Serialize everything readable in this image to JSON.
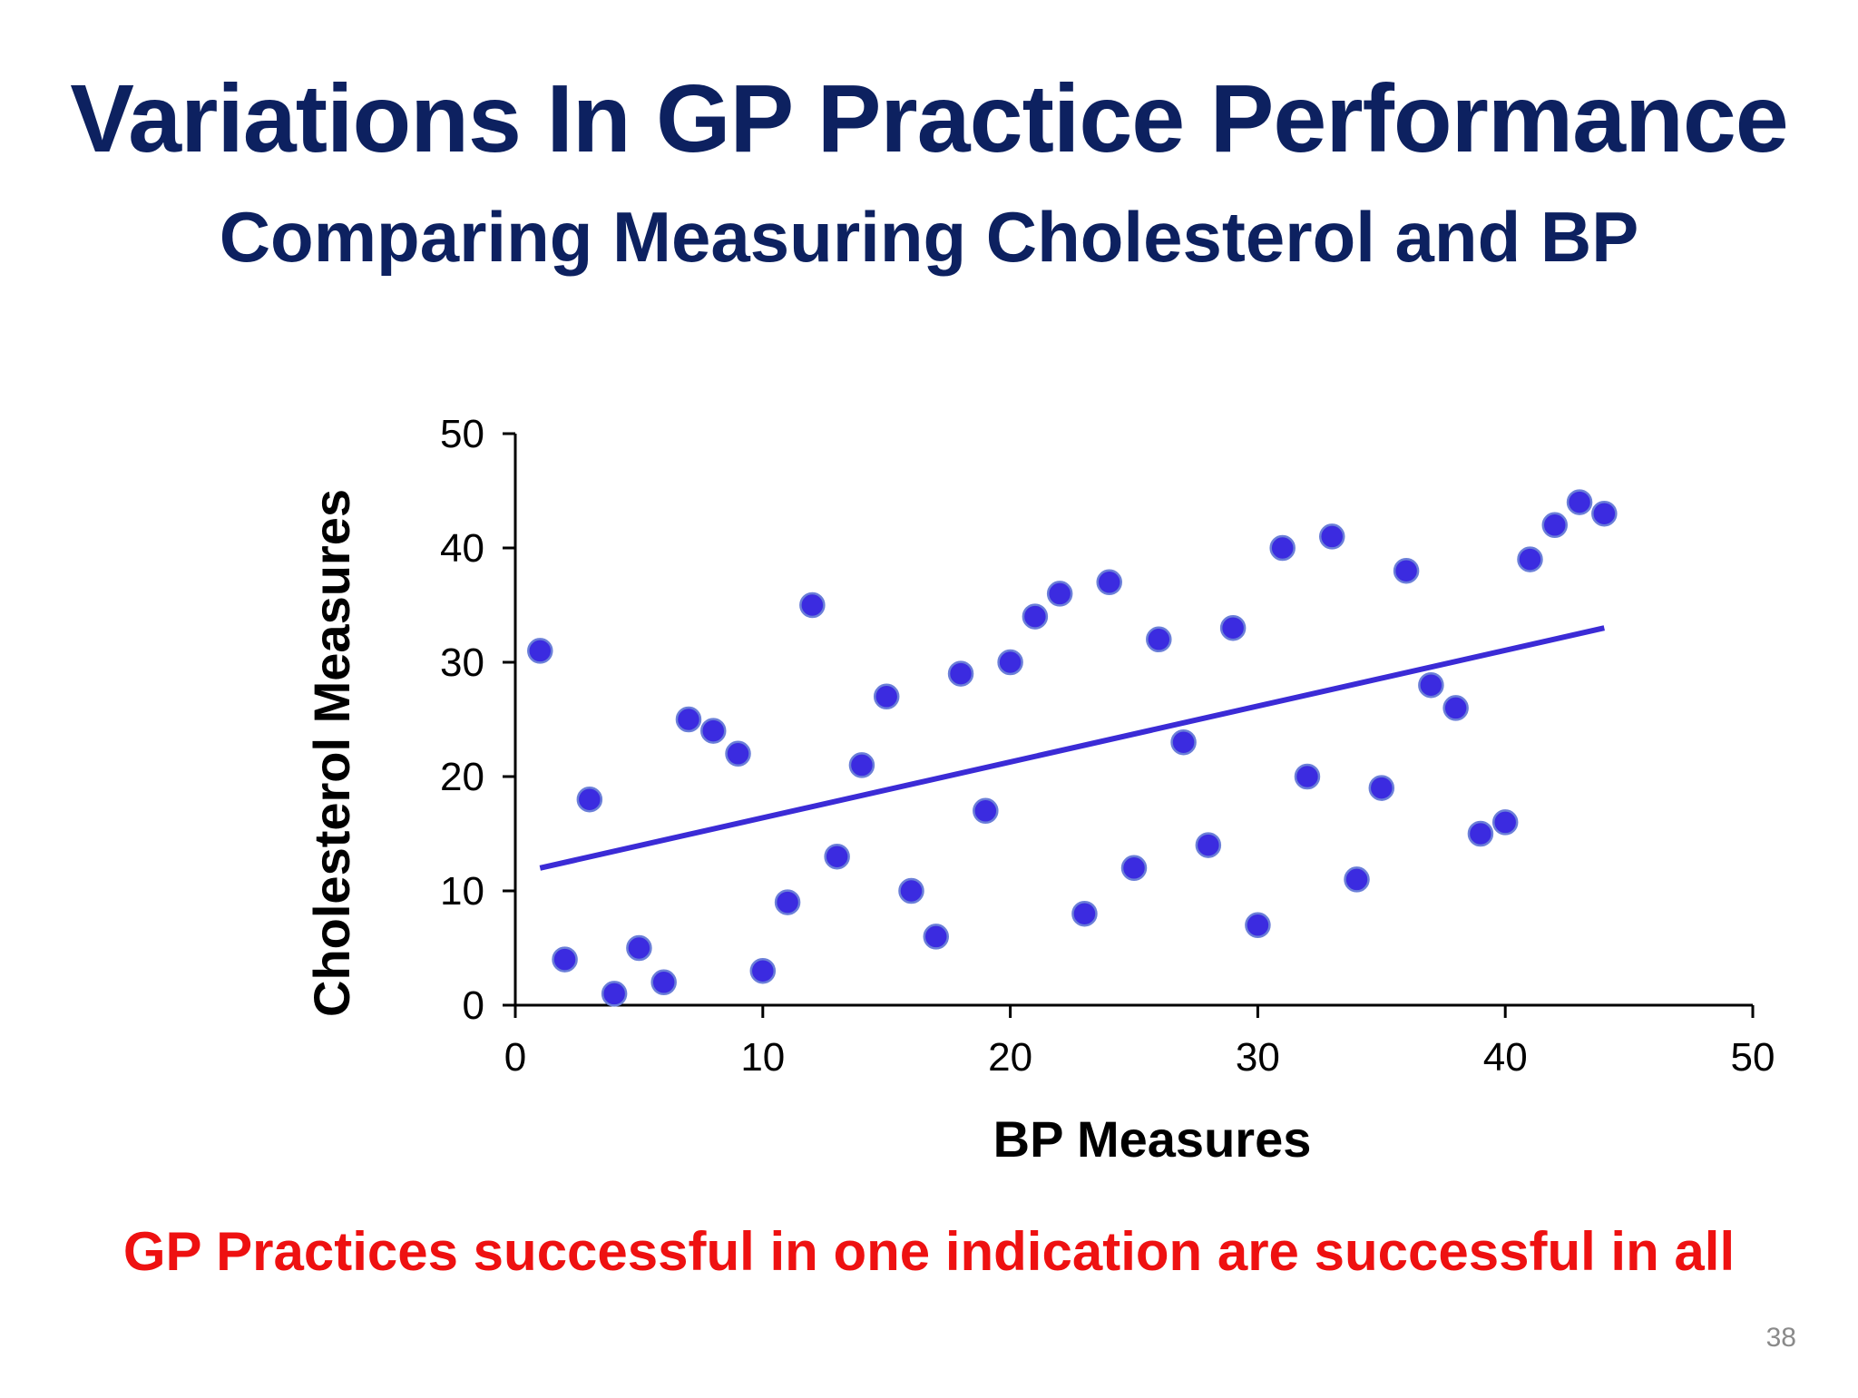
{
  "slide": {
    "title": "Variations In GP Practice Performance",
    "subtitle": "Comparing Measuring Cholesterol and BP",
    "footnote": "GP Practices successful in one indication are successful in all",
    "page_number": "38",
    "colors": {
      "title": "#0d2160",
      "footnote": "#ee1111",
      "points": "#3b2be0",
      "point_outline": "#6b7fd8",
      "trendline": "#3b2bd6",
      "axis": "#000000"
    }
  },
  "chart_data": {
    "type": "scatter",
    "title": "",
    "xlabel": "BP Measures",
    "ylabel": "Cholesterol Measures",
    "xlim": [
      0,
      50
    ],
    "ylim": [
      0,
      50
    ],
    "xticks": [
      0,
      10,
      20,
      30,
      40,
      50
    ],
    "yticks": [
      0,
      10,
      20,
      30,
      40,
      50
    ],
    "grid": false,
    "legend": "none",
    "points": [
      [
        1,
        31
      ],
      [
        2,
        4
      ],
      [
        3,
        18
      ],
      [
        4,
        1
      ],
      [
        5,
        5
      ],
      [
        6,
        2
      ],
      [
        7,
        25
      ],
      [
        8,
        24
      ],
      [
        9,
        22
      ],
      [
        10,
        3
      ],
      [
        11,
        9
      ],
      [
        12,
        35
      ],
      [
        13,
        13
      ],
      [
        14,
        21
      ],
      [
        15,
        27
      ],
      [
        16,
        10
      ],
      [
        17,
        6
      ],
      [
        18,
        29
      ],
      [
        19,
        17
      ],
      [
        20,
        30
      ],
      [
        21,
        34
      ],
      [
        22,
        36
      ],
      [
        23,
        8
      ],
      [
        24,
        37
      ],
      [
        25,
        12
      ],
      [
        26,
        32
      ],
      [
        27,
        23
      ],
      [
        28,
        14
      ],
      [
        29,
        33
      ],
      [
        30,
        7
      ],
      [
        31,
        40
      ],
      [
        32,
        20
      ],
      [
        33,
        41
      ],
      [
        34,
        11
      ],
      [
        35,
        19
      ],
      [
        36,
        38
      ],
      [
        37,
        28
      ],
      [
        38,
        26
      ],
      [
        39,
        15
      ],
      [
        40,
        16
      ],
      [
        41,
        39
      ],
      [
        42,
        42
      ],
      [
        43,
        44
      ],
      [
        44,
        43
      ]
    ],
    "trendline": {
      "x": [
        1,
        44
      ],
      "y": [
        12,
        33
      ]
    }
  }
}
